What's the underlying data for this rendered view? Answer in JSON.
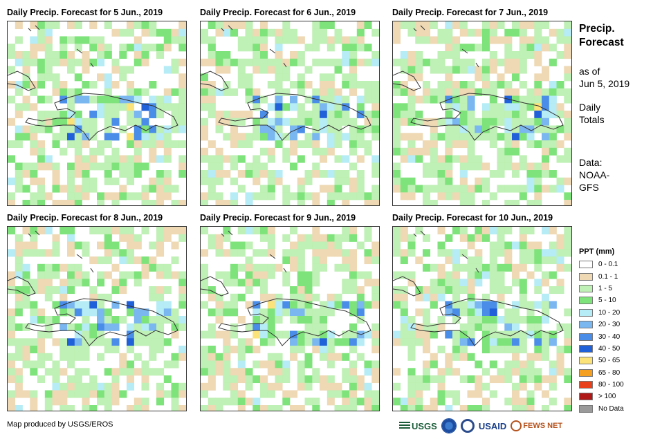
{
  "panels": [
    {
      "title": "Daily Precip. Forecast for 5 Jun., 2019",
      "seed": 5,
      "hot": [
        "55,4,5",
        "60,4,6"
      ]
    },
    {
      "title": "Daily Precip. Forecast for 6 Jun., 2019",
      "seed": 6
    },
    {
      "title": "Daily Precip. Forecast for 7 Jun., 2019",
      "seed": 7
    },
    {
      "title": "Daily Precip. Forecast for 8 Jun., 2019",
      "seed": 8
    },
    {
      "title": "Daily Precip. Forecast for 9 Jun., 2019",
      "seed": 9
    },
    {
      "title": "Daily Precip. Forecast for 10 Jun., 2019",
      "seed": 10
    }
  ],
  "side": {
    "title_line1": "Precip.",
    "title_line2": "Forecast",
    "asof_line1": "as of",
    "asof_line2": "Jun 5, 2019",
    "totals_line1": "Daily",
    "totals_line2": "Totals",
    "data_line1": "Data:",
    "data_line2": "NOAA-",
    "data_line3": "GFS"
  },
  "legend": {
    "title": "PPT (mm)",
    "items": [
      {
        "label": "0 - 0.1",
        "color": "#ffffff"
      },
      {
        "label": "0.1 - 1",
        "color": "#eed9b4"
      },
      {
        "label": "1 - 5",
        "color": "#bff0b5"
      },
      {
        "label": "5 - 10",
        "color": "#7ee37a"
      },
      {
        "label": "10 - 20",
        "color": "#b5ecf5"
      },
      {
        "label": "20 - 30",
        "color": "#7ab6f0"
      },
      {
        "label": "30 - 40",
        "color": "#4a8de8"
      },
      {
        "label": "40 - 50",
        "color": "#2060d8"
      },
      {
        "label": "50 - 65",
        "color": "#fbe37a"
      },
      {
        "label": "65 - 80",
        "color": "#f5a020"
      },
      {
        "label": "80 - 100",
        "color": "#e8401a"
      },
      {
        "label": "> 100",
        "color": "#b01818"
      },
      {
        "label": "No Data",
        "color": "#9a9a9a"
      }
    ]
  },
  "credit": "Map produced by USGS/EROS",
  "logos": {
    "usgs": "USGS",
    "usaid": "USAID",
    "fewsnet": "FEWS NET"
  }
}
